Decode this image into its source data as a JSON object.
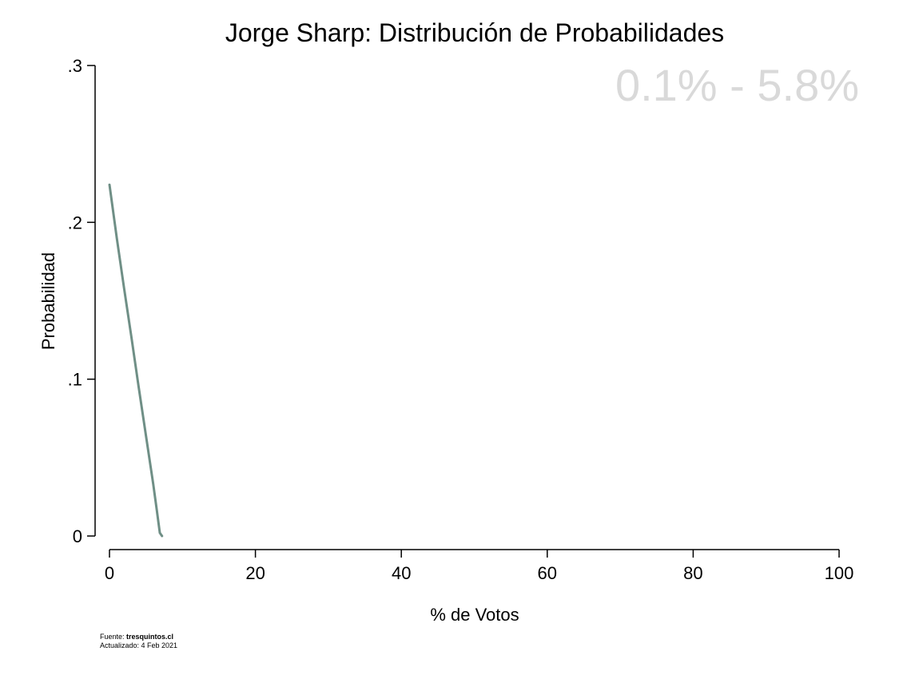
{
  "chart_data": {
    "type": "line",
    "title": "Jorge Sharp: Distribución de Probabilidades",
    "xlabel": "% de Votos",
    "ylabel": "Probabilidad",
    "xlim": [
      0,
      100
    ],
    "ylim": [
      0,
      0.3
    ],
    "x_ticks": [
      0,
      20,
      40,
      60,
      80,
      100
    ],
    "x_tick_labels": [
      "0",
      "20",
      "40",
      "60",
      "80",
      "100"
    ],
    "y_ticks": [
      0,
      0.1,
      0.2,
      0.3
    ],
    "y_tick_labels": [
      "0",
      ".1",
      ".2",
      ".3"
    ],
    "grid": false,
    "series": [
      {
        "color": "#6f8f86",
        "x": [
          0,
          1,
          2,
          3,
          4,
          5,
          6,
          6.5,
          6.9,
          7.2
        ],
        "y": [
          0.224,
          0.19,
          0.158,
          0.127,
          0.095,
          0.064,
          0.033,
          0.016,
          0.002,
          0.0
        ]
      }
    ],
    "annotation": {
      "text": "0.1% - 5.8%",
      "color": "#d9d9d9"
    }
  },
  "footer": {
    "source_label": "Fuente:",
    "source_value": "tresquintos.cl",
    "updated_label": "Actualizado: 4 Feb 2021"
  }
}
